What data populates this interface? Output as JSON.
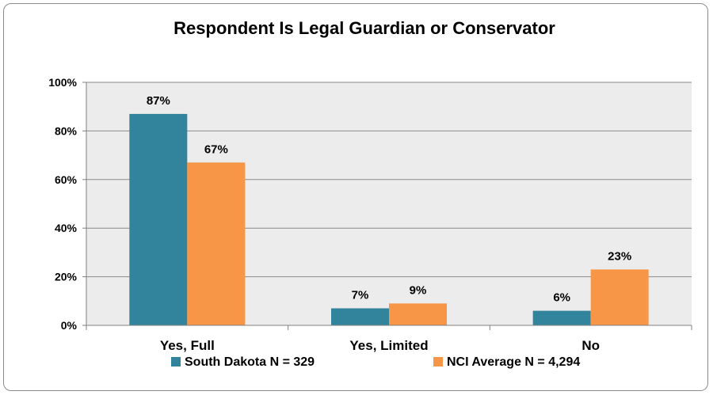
{
  "chart_data": {
    "type": "bar",
    "title": "Respondent Is Legal Guardian or Conservator",
    "categories": [
      "Yes, Full",
      "Yes, Limited",
      "No"
    ],
    "series": [
      {
        "name": "South Dakota N = 329",
        "values": [
          87,
          7,
          6
        ],
        "labels": [
          "87%",
          "7%",
          "6%"
        ],
        "color": "#31849b"
      },
      {
        "name": "NCI Average N = 4,294",
        "values": [
          67,
          9,
          23
        ],
        "labels": [
          "67%",
          "9%",
          "23%"
        ],
        "color": "#f79646"
      }
    ],
    "ylim": [
      0,
      100
    ],
    "yticks": [
      0,
      20,
      40,
      60,
      80,
      100
    ],
    "ytick_labels": [
      "0%",
      "20%",
      "40%",
      "60%",
      "80%",
      "100%"
    ],
    "grid": true,
    "legend": "bottom",
    "plot_background": "#ececec"
  }
}
